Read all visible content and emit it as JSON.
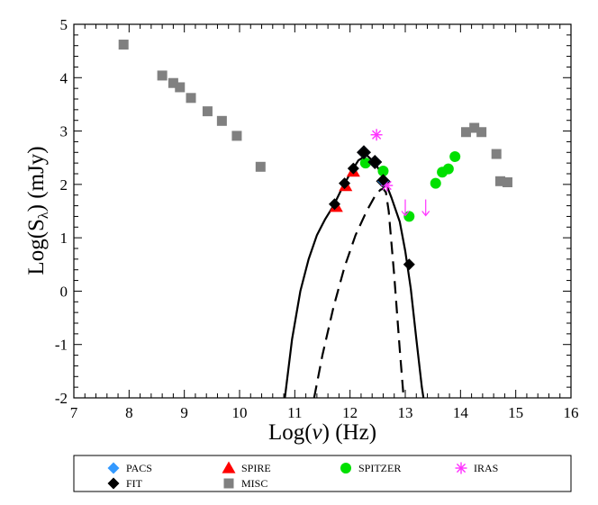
{
  "chart_data": {
    "type": "scatter",
    "title": "",
    "xlabel": {
      "main": "Log(",
      "symbol": "ν",
      "tail": ") (Hz)"
    },
    "ylabel": {
      "main": "Log(S",
      "sub": "λ",
      "tail": ") (mJy)"
    },
    "xlim": [
      7,
      16
    ],
    "ylim": [
      -2,
      5
    ],
    "xticks": [
      "7",
      "8",
      "9",
      "10",
      "11",
      "12",
      "13",
      "14",
      "15",
      "16"
    ],
    "yticks": [
      "-2",
      "-1",
      "0",
      "1",
      "2",
      "3",
      "4",
      "5"
    ],
    "grid": false,
    "legend_position": "bottom",
    "series": [
      {
        "name": "PACS",
        "marker": "diamond",
        "color": "#3399ff",
        "x": [
          12.25,
          12.45,
          12.6
        ],
        "y": [
          2.6,
          2.42,
          2.06
        ]
      },
      {
        "name": "SPIRE",
        "marker": "triangle",
        "color": "#ff0000",
        "x": [
          11.75,
          11.92,
          12.06
        ],
        "y": [
          1.58,
          1.97,
          2.24
        ]
      },
      {
        "name": "SPITZER",
        "marker": "circle",
        "color": "#00e000",
        "x": [
          12.28,
          12.6,
          13.07,
          13.55,
          13.67,
          13.78,
          13.9
        ],
        "y": [
          2.4,
          2.25,
          1.4,
          2.02,
          2.23,
          2.29,
          2.52
        ]
      },
      {
        "name": "IRAS",
        "marker": "asterisk",
        "color": "#ff33ff",
        "x": [
          12.48,
          12.67
        ],
        "y": [
          2.93,
          1.98
        ]
      },
      {
        "name": "IRAS upper limits",
        "marker": "arrow-down",
        "color": "#ff33ff",
        "x": [
          13.0,
          13.37
        ],
        "y": [
          1.55,
          1.55
        ]
      },
      {
        "name": "FIT",
        "marker": "diamond",
        "color": "#000000",
        "x": [
          11.72,
          11.9,
          12.06,
          12.25,
          12.45,
          12.6,
          13.07
        ],
        "y": [
          1.63,
          2.02,
          2.3,
          2.6,
          2.42,
          2.08,
          0.5
        ]
      },
      {
        "name": "MISC",
        "marker": "square",
        "color": "#808080",
        "x": [
          7.9,
          8.6,
          8.8,
          8.92,
          9.12,
          9.42,
          9.68,
          9.95,
          10.38,
          14.1,
          14.25,
          14.38,
          14.65,
          14.72,
          14.85
        ],
        "y": [
          4.62,
          4.04,
          3.9,
          3.82,
          3.62,
          3.37,
          3.19,
          2.91,
          2.33,
          2.98,
          3.06,
          2.98,
          2.57,
          2.06,
          2.04
        ]
      }
    ],
    "curves": [
      {
        "style": "solid",
        "color": "#000000",
        "x": [
          10.82,
          10.95,
          11.1,
          11.25,
          11.4,
          11.55,
          11.7,
          11.85,
          12.0,
          12.15,
          12.3,
          12.45,
          12.6,
          12.75,
          12.9,
          13.0,
          13.1,
          13.2,
          13.3,
          13.33
        ],
        "y": [
          -2.0,
          -0.9,
          0.0,
          0.6,
          1.05,
          1.35,
          1.6,
          1.92,
          2.2,
          2.45,
          2.55,
          2.4,
          2.15,
          1.75,
          1.3,
          0.75,
          0.05,
          -0.9,
          -1.8,
          -2.0
        ]
      },
      {
        "style": "dashed",
        "color": "#000000",
        "x": [
          11.35,
          11.5,
          11.7,
          11.9,
          12.1,
          12.3,
          12.45,
          12.55,
          12.6,
          12.65,
          12.7,
          12.8,
          12.9,
          12.97
        ],
        "y": [
          -2.0,
          -1.2,
          -0.3,
          0.45,
          1.05,
          1.5,
          1.78,
          1.9,
          1.92,
          1.85,
          1.5,
          0.3,
          -1.1,
          -2.0
        ]
      }
    ],
    "legend": [
      {
        "label": "PACS",
        "marker": "diamond",
        "color": "#3399ff"
      },
      {
        "label": "SPIRE",
        "marker": "triangle",
        "color": "#ff0000"
      },
      {
        "label": "SPITZER",
        "marker": "circle",
        "color": "#00e000"
      },
      {
        "label": "IRAS",
        "marker": "asterisk",
        "color": "#ff33ff"
      },
      {
        "label": "FIT",
        "marker": "diamond",
        "color": "#000000"
      },
      {
        "label": "MISC",
        "marker": "square",
        "color": "#808080"
      }
    ]
  }
}
